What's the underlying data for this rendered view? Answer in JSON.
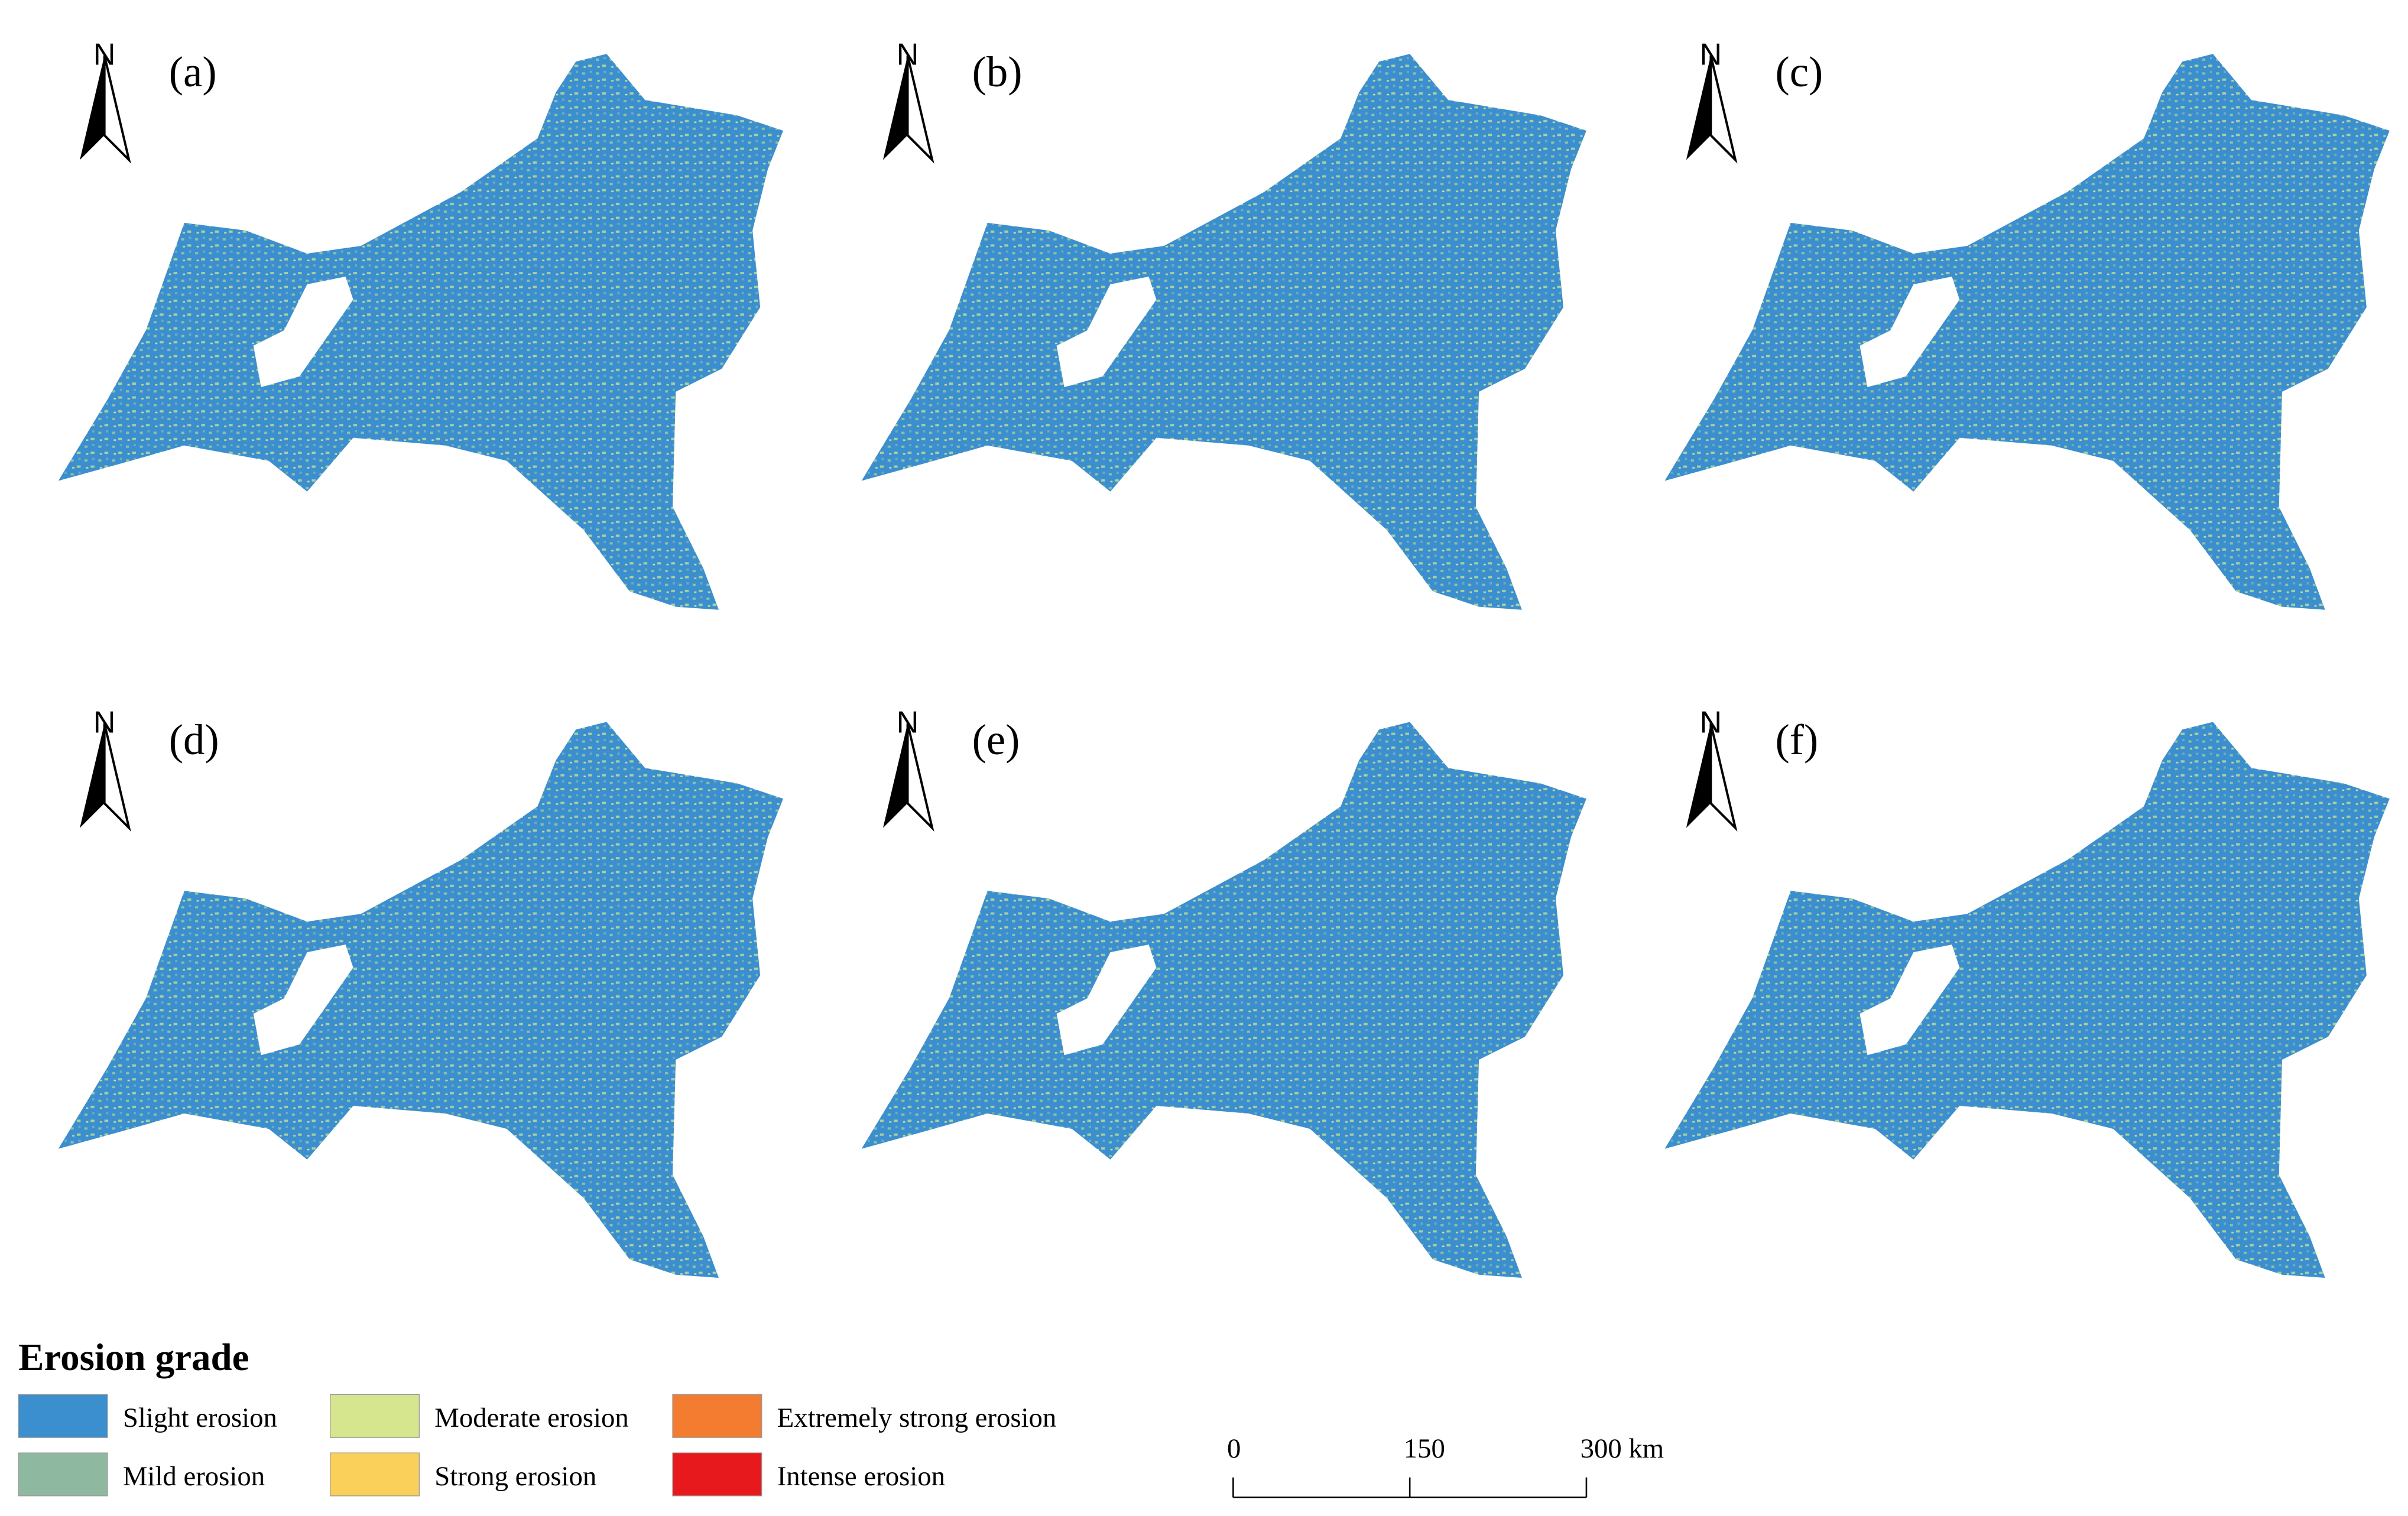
{
  "panels": [
    {
      "label": "(a)",
      "north": "N"
    },
    {
      "label": "(b)",
      "north": "N"
    },
    {
      "label": "(c)",
      "north": "N"
    },
    {
      "label": "(d)",
      "north": "N"
    },
    {
      "label": "(e)",
      "north": "N"
    },
    {
      "label": "(f)",
      "north": "N"
    }
  ],
  "legend": {
    "title": "Erosion grade",
    "items": [
      {
        "name": "Slight erosion",
        "color": "#3b8fcf"
      },
      {
        "name": "Mild erosion",
        "color": "#8fb8a0"
      },
      {
        "name": "Moderate erosion",
        "color": "#d6e68e"
      },
      {
        "name": "Strong erosion",
        "color": "#fad05a"
      },
      {
        "name": "Extremely strong erosion",
        "color": "#f47c30"
      },
      {
        "name": "Intense erosion",
        "color": "#e8191c"
      }
    ]
  },
  "scale_bar": {
    "ticks": [
      0,
      150,
      {
        "value": 300,
        "label": "300 km"
      }
    ]
  }
}
